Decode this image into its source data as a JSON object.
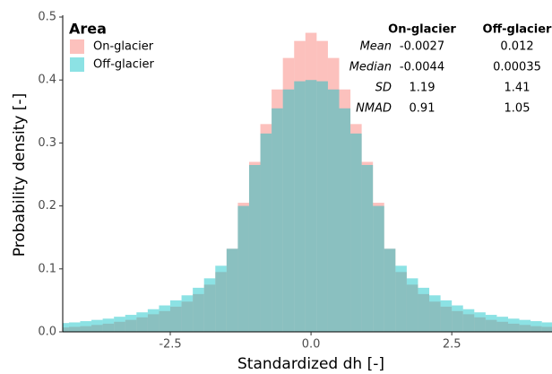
{
  "chart_data": {
    "type": "histogram",
    "xlabel": "Standardized dh [-]",
    "ylabel": "Probability density [-]",
    "legend_title": "Area",
    "bins": [
      -4.5,
      -4.3,
      -4.1,
      -3.9,
      -3.7,
      -3.5,
      -3.3,
      -3.1,
      -2.9,
      -2.7,
      -2.5,
      -2.3,
      -2.1,
      -1.9,
      -1.7,
      -1.5,
      -1.3,
      -1.1,
      -0.9,
      -0.7,
      -0.5,
      -0.3,
      -0.1,
      0.1,
      0.3,
      0.5,
      0.7,
      0.9,
      1.1,
      1.3,
      1.5,
      1.7,
      1.9,
      2.1,
      2.3,
      2.5,
      2.7,
      2.9,
      3.1,
      3.3,
      3.5,
      3.7,
      3.9,
      4.1,
      4.3,
      4.5
    ],
    "series": [
      {
        "name": "On-glacier",
        "color": "#F8766D",
        "values": [
          0.007,
          0.008,
          0.009,
          0.011,
          0.013,
          0.016,
          0.019,
          0.023,
          0.028,
          0.033,
          0.04,
          0.048,
          0.06,
          0.075,
          0.095,
          0.132,
          0.205,
          0.27,
          0.33,
          0.385,
          0.435,
          0.462,
          0.475,
          0.462,
          0.435,
          0.385,
          0.33,
          0.27,
          0.205,
          0.132,
          0.095,
          0.075,
          0.06,
          0.048,
          0.04,
          0.033,
          0.028,
          0.023,
          0.019,
          0.016,
          0.013,
          0.011,
          0.009,
          0.008,
          0.007
        ]
      },
      {
        "name": "Off-glacier",
        "color": "#00BFC4",
        "values": [
          0.014,
          0.015,
          0.017,
          0.019,
          0.021,
          0.024,
          0.027,
          0.031,
          0.036,
          0.042,
          0.05,
          0.058,
          0.07,
          0.085,
          0.105,
          0.132,
          0.2,
          0.265,
          0.315,
          0.355,
          0.385,
          0.398,
          0.4,
          0.398,
          0.385,
          0.355,
          0.315,
          0.265,
          0.2,
          0.132,
          0.105,
          0.085,
          0.07,
          0.058,
          0.05,
          0.042,
          0.036,
          0.031,
          0.027,
          0.024,
          0.021,
          0.019,
          0.017,
          0.015,
          0.014
        ]
      }
    ],
    "xlim": [
      -4.41,
      4.28
    ],
    "ylim": [
      0,
      0.5
    ],
    "xticks": [
      -2.5,
      {
        "value": 0,
        "label": "0.0"
      },
      2.5
    ],
    "yticks": [
      {
        "value": 0,
        "label": "0.0"
      },
      0.1,
      0.2,
      0.3,
      0.4,
      0.5
    ],
    "grid": false,
    "stats_table": {
      "columns": [
        "On-glacier",
        "Off-glacier"
      ],
      "rows": [
        {
          "label": "Mean",
          "values": [
            -0.0027,
            0.012
          ]
        },
        {
          "label": "Median",
          "values": [
            -0.0044,
            0.00035
          ]
        },
        {
          "label": "SD",
          "values": [
            1.19,
            1.41
          ]
        },
        {
          "label": "NMAD",
          "values": [
            0.91,
            1.05
          ]
        }
      ]
    }
  }
}
